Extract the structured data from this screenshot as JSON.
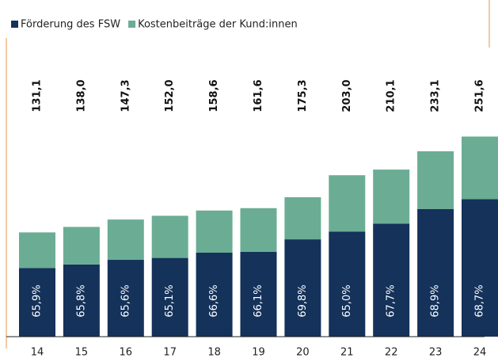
{
  "chart_data": {
    "type": "stacked_bar",
    "categories": [
      "14",
      "15",
      "16",
      "17",
      "18",
      "19",
      "20",
      "21",
      "22",
      "23",
      "24"
    ],
    "series": [
      {
        "name": "Förderung des FSW",
        "color": "#14325a",
        "values": [
          86.4,
          90.8,
          96.6,
          99.0,
          105.6,
          106.8,
          122.4,
          132.0,
          142.2,
          160.6,
          172.9
        ]
      },
      {
        "name": "Kostenbeiträge der Kund:innen",
        "color": "#6aad94",
        "values": [
          44.7,
          47.2,
          50.7,
          53.0,
          53.0,
          54.8,
          52.9,
          71.0,
          67.9,
          72.5,
          78.7
        ]
      }
    ],
    "totals": [
      {
        "value": 131.1,
        "label": "131,1"
      },
      {
        "value": 138.0,
        "label": "138,0"
      },
      {
        "value": 147.3,
        "label": "147,3"
      },
      {
        "value": 152.0,
        "label": "152,0"
      },
      {
        "value": 158.6,
        "label": "158,6"
      },
      {
        "value": 161.6,
        "label": "161,6"
      },
      {
        "value": 175.3,
        "label": "175,3"
      },
      {
        "value": 203.0,
        "label": "203,0"
      },
      {
        "value": 210.1,
        "label": "210,1"
      },
      {
        "value": 233.1,
        "label": "233,1"
      },
      {
        "value": 251.6,
        "label": "251,6"
      }
    ],
    "shares": [
      {
        "value": 65.9,
        "label": "65,9%"
      },
      {
        "value": 65.8,
        "label": "65,8%"
      },
      {
        "value": 65.6,
        "label": "65,6%"
      },
      {
        "value": 65.1,
        "label": "65,1%"
      },
      {
        "value": 66.6,
        "label": "66,6%"
      },
      {
        "value": 66.1,
        "label": "66,1%"
      },
      {
        "value": 69.8,
        "label": "69,8%"
      },
      {
        "value": 65.0,
        "label": "65,0%"
      },
      {
        "value": 67.7,
        "label": "67,7%"
      },
      {
        "value": 68.9,
        "label": "68,9%"
      },
      {
        "value": 68.7,
        "label": "68,7%"
      }
    ],
    "ylim": [
      0,
      255
    ]
  }
}
